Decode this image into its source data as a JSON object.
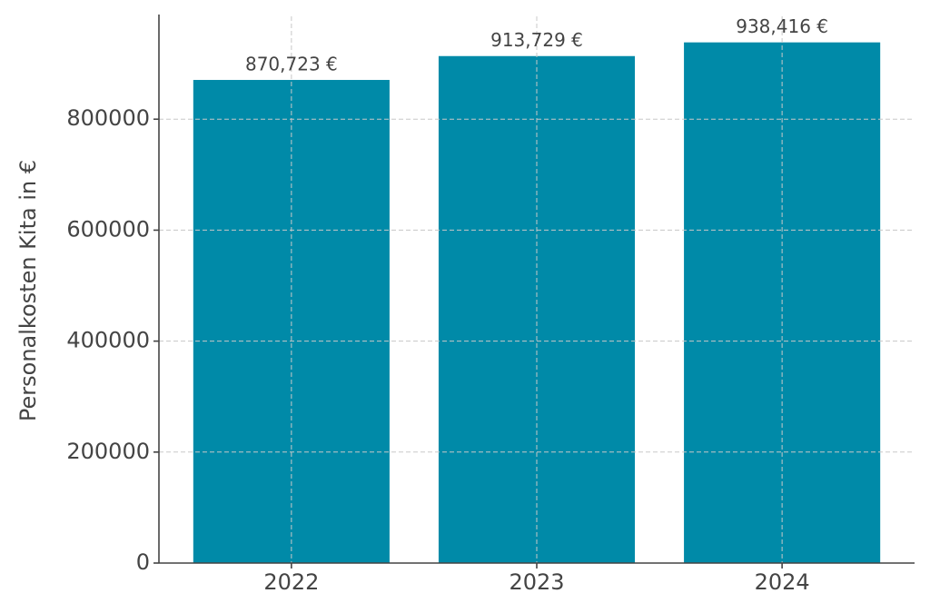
{
  "chart_data": {
    "type": "bar",
    "y_label": "Personalkosten Kita in €",
    "categories": [
      "2022",
      "2023",
      "2024"
    ],
    "values": [
      870723,
      913729,
      938416
    ],
    "value_labels": [
      "870,723 €",
      "913,729 €",
      "938,416 €"
    ],
    "color": "#008aa8",
    "ylim": [
      0,
      985337
    ],
    "yticks": [
      0,
      200000,
      400000,
      600000,
      800000
    ],
    "grid": true
  }
}
